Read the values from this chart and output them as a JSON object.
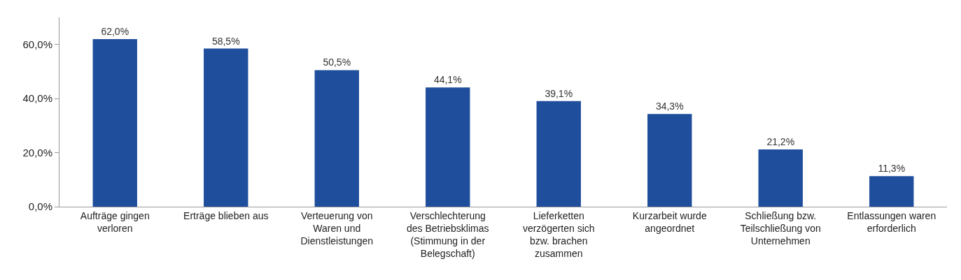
{
  "chart_data": {
    "type": "bar",
    "categories": [
      "Aufträge gingen verloren",
      "Erträge blieben aus",
      "Verteuerung von Waren und Dienstleistungen",
      "Verschlechterung des Betriebsklimas (Stimmung in der Belegschaft)",
      "Lieferketten verzögerten sich bzw. brachen zusammen",
      "Kurzarbeit wurde angeordnet",
      "Schließung bzw. Teilschließung von Unternehmen",
      "Entlassungen waren erforderlich"
    ],
    "values": [
      62.0,
      58.5,
      50.5,
      44.1,
      39.1,
      34.3,
      21.2,
      11.3
    ],
    "value_labels": [
      "62,0%",
      "58,5%",
      "50,5%",
      "44,1%",
      "39,1%",
      "34,3%",
      "21,2%",
      "11,3%"
    ],
    "color": "#1f4e9c",
    "ylim": [
      0,
      70
    ],
    "yticks": [
      {
        "value": 0,
        "label": "0,0%"
      },
      {
        "value": 20,
        "label": "20,0%"
      },
      {
        "value": 40,
        "label": "40,0%"
      },
      {
        "value": 60,
        "label": "60,0%"
      }
    ],
    "grid": false
  }
}
